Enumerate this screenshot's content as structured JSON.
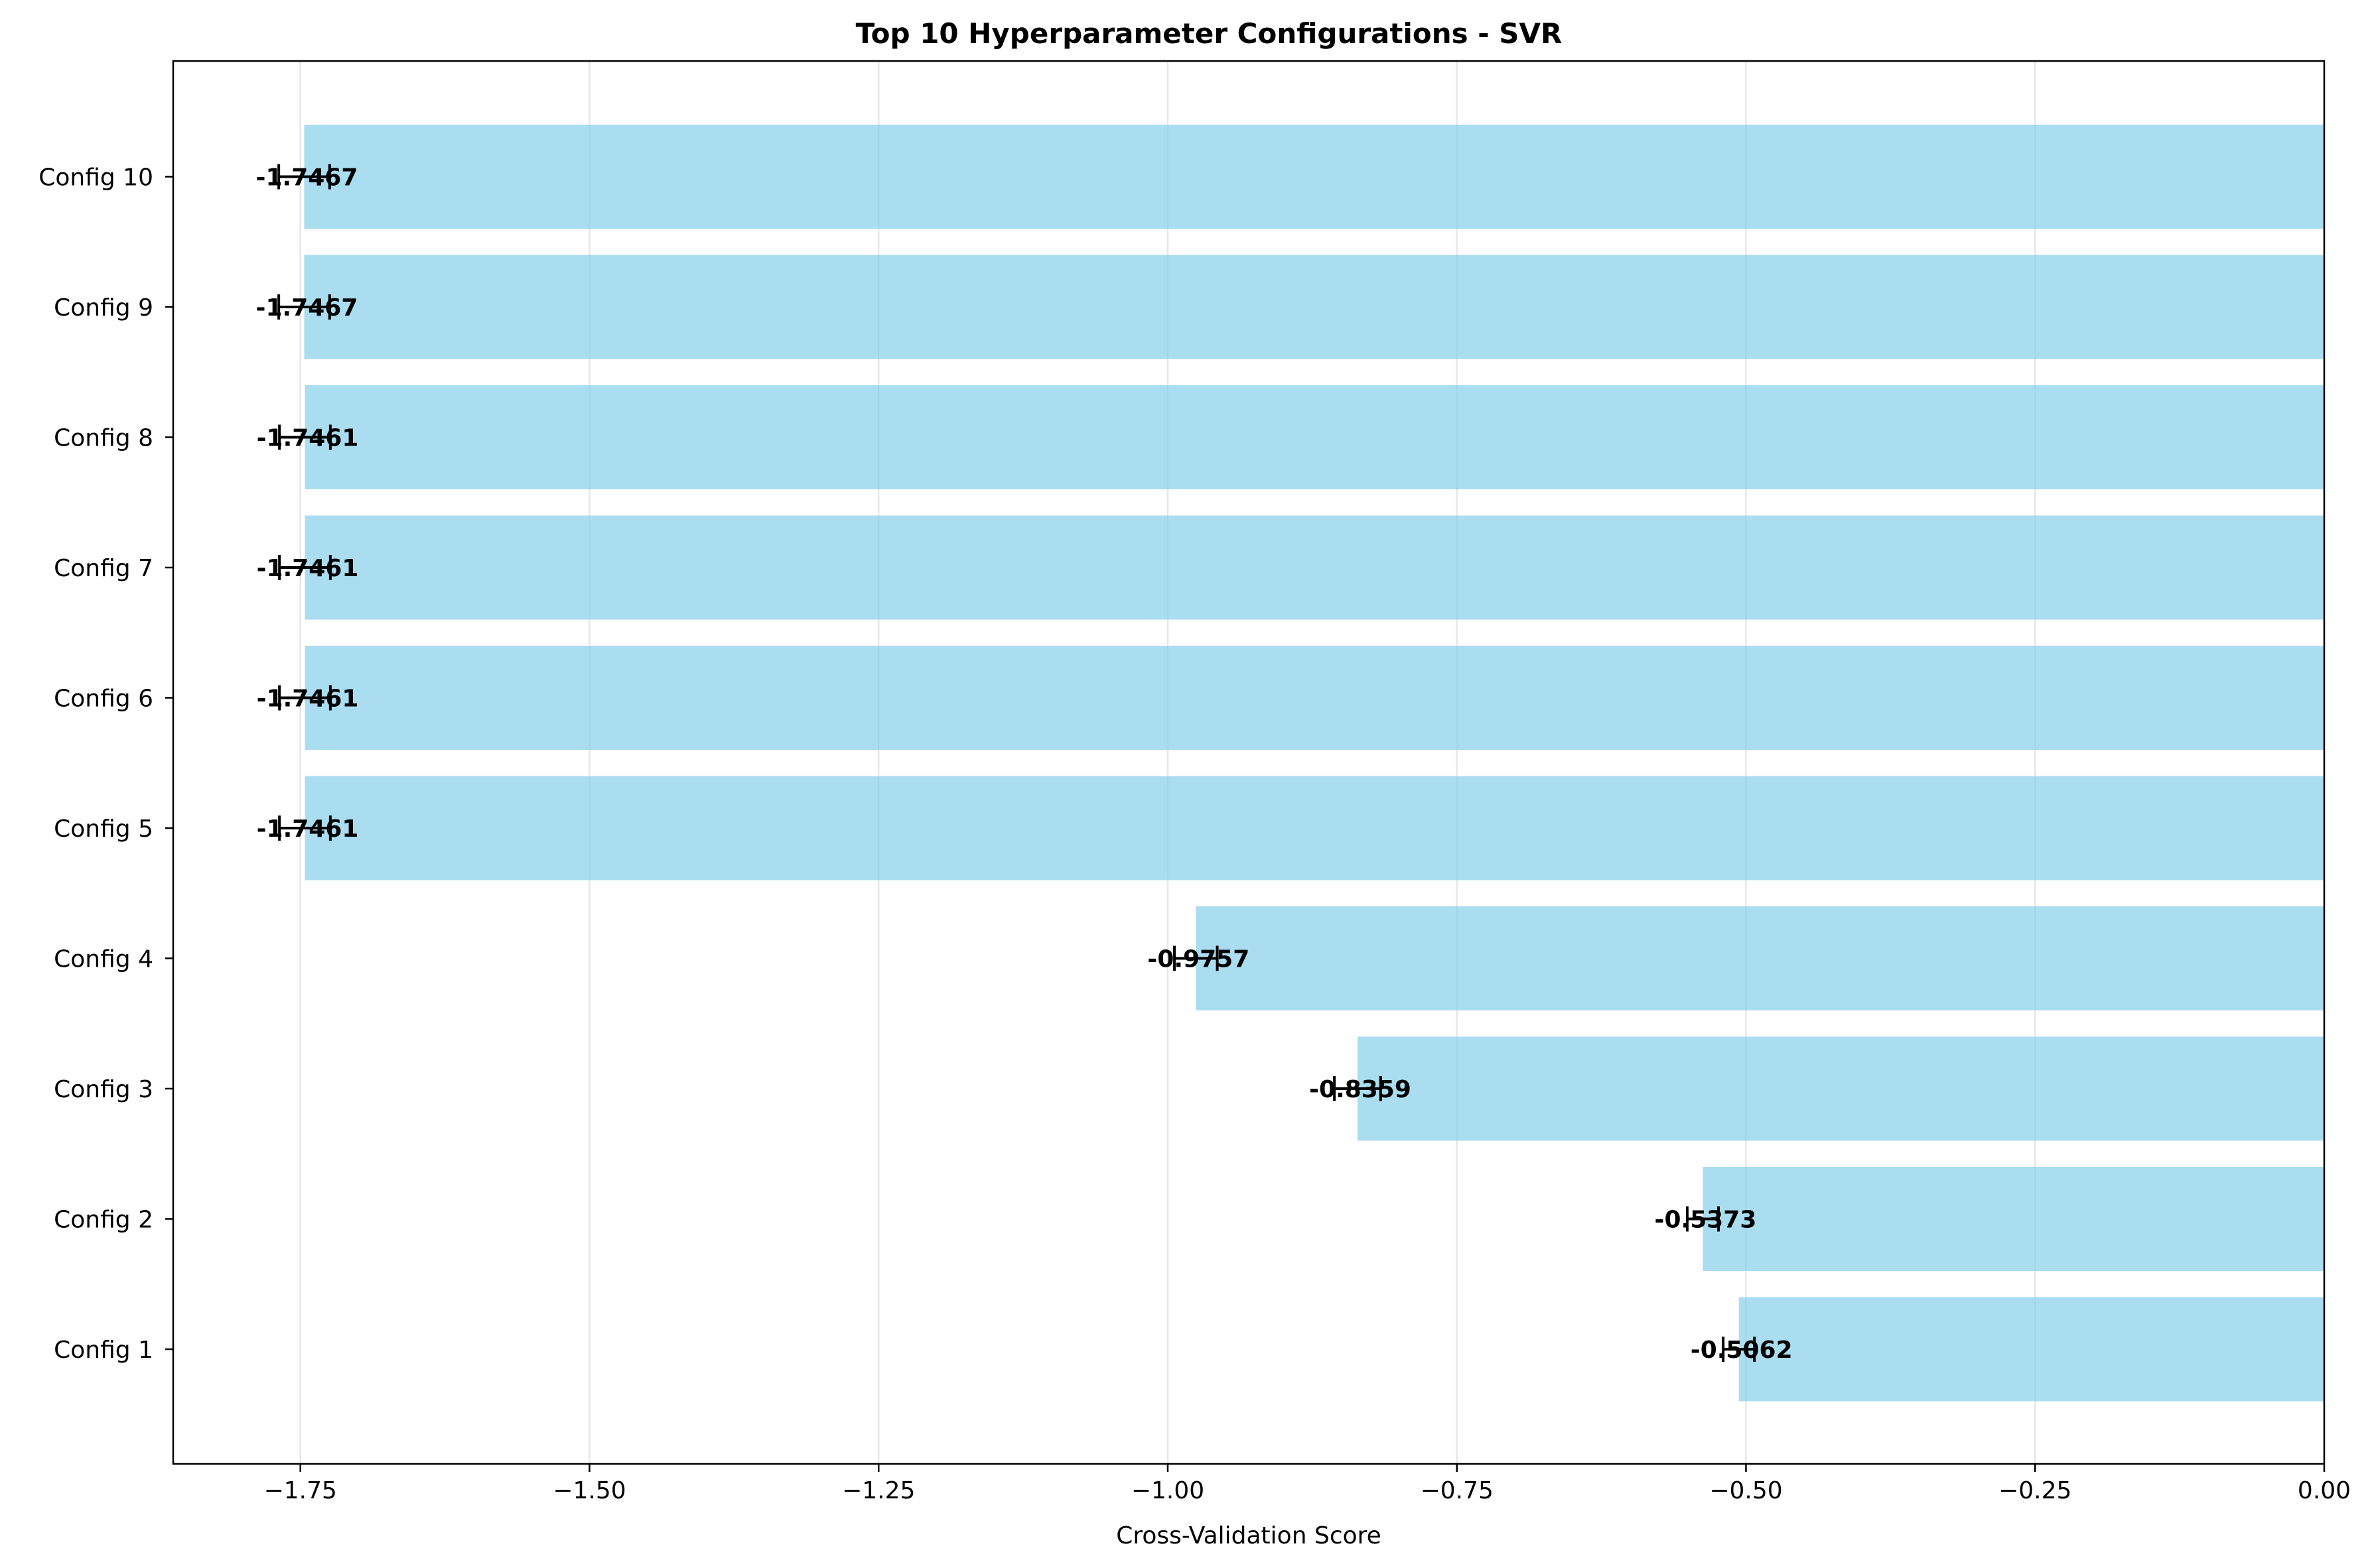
{
  "chart_data": {
    "type": "bar",
    "orientation": "horizontal",
    "title": "Top 10 Hyperparameter Configurations - SVR",
    "xlabel": "Cross-Validation Score",
    "ylabel": "",
    "xlim": [
      -1.86,
      0.0
    ],
    "x_ticks": [
      -1.75,
      -1.5,
      -1.25,
      -1.0,
      -0.75,
      -0.5,
      -0.25,
      0.0
    ],
    "x_tick_labels": [
      "−1.75",
      "−1.50",
      "−1.25",
      "−1.00",
      "−0.75",
      "−0.50",
      "−0.25",
      "0.00"
    ],
    "grid": "x-only",
    "bar_color": "#87CEEB",
    "categories": [
      "Config 1",
      "Config 2",
      "Config 3",
      "Config 4",
      "Config 5",
      "Config 6",
      "Config 7",
      "Config 8",
      "Config 9",
      "Config 10"
    ],
    "values": [
      -0.5062,
      -0.5373,
      -0.8359,
      -0.9757,
      -1.7461,
      -1.7461,
      -1.7461,
      -1.7461,
      -1.7467,
      -1.7467
    ],
    "errors": [
      0.0135,
      0.0135,
      0.02,
      0.0185,
      0.022,
      0.022,
      0.022,
      0.022,
      0.022,
      0.022
    ],
    "data_labels": [
      "-0.5062",
      "-0.5373",
      "-0.8359",
      "-0.9757",
      "-1.7461",
      "-1.7461",
      "-1.7461",
      "-1.7461",
      "-1.7467",
      "-1.7467"
    ]
  }
}
